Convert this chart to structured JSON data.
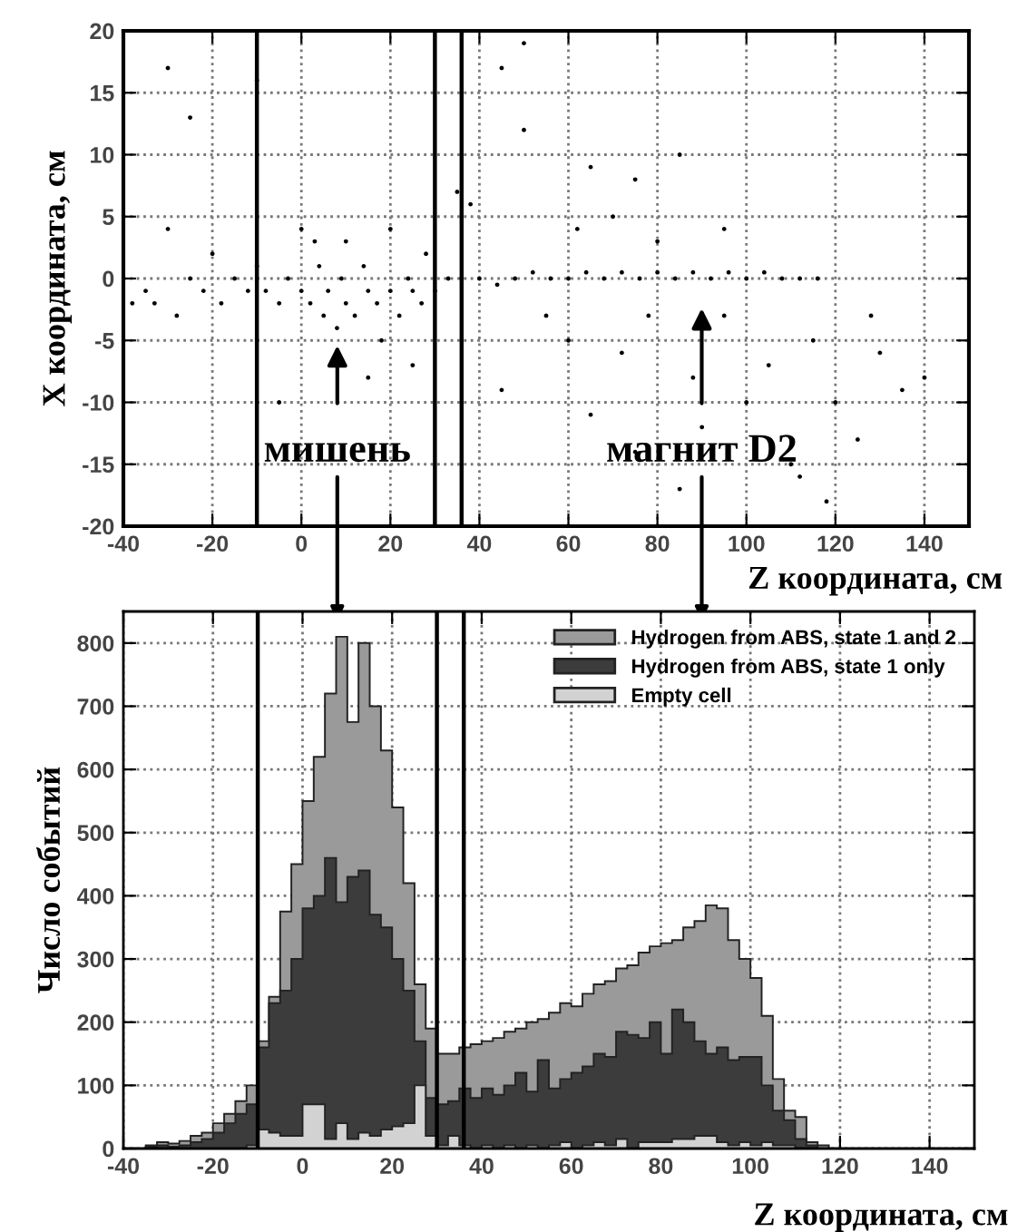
{
  "chart_data": [
    {
      "type": "scatter",
      "ylabel": "X координата, см",
      "xlabel": "Z координата, см",
      "color": "#000000",
      "marker": "circle",
      "grid": true,
      "xlim": [
        -40,
        150
      ],
      "ylim": [
        -20,
        20
      ],
      "xticks": [
        -40,
        -20,
        0,
        20,
        40,
        60,
        80,
        100,
        120,
        140
      ],
      "yticks": [
        -20,
        -15,
        -10,
        -5,
        0,
        5,
        10,
        15,
        20
      ],
      "x": [
        -15,
        -12,
        -10,
        -8,
        -5,
        -3,
        0,
        2,
        4,
        5,
        6,
        8,
        9,
        10,
        12,
        14,
        15,
        17,
        18,
        20,
        22,
        24,
        25,
        27,
        28,
        30,
        33,
        36,
        40,
        44,
        48,
        52,
        56,
        60,
        64,
        68,
        72,
        76,
        80,
        84,
        88,
        92,
        96,
        100,
        104,
        108,
        112,
        116,
        -20,
        -22,
        -18,
        -25,
        -30,
        -28,
        -35,
        -30,
        -25,
        -10,
        -5,
        0,
        3,
        10,
        20,
        25,
        15,
        35,
        45,
        50,
        50,
        55,
        60,
        62,
        65,
        70,
        72,
        75,
        78,
        80,
        85,
        88,
        90,
        95,
        95,
        100,
        105,
        110,
        112,
        115,
        118,
        120,
        125,
        128,
        130,
        135,
        140,
        85,
        75,
        65,
        45,
        38,
        -33,
        -38
      ],
      "values": [
        0,
        -1,
        1,
        -1,
        -2,
        0,
        -1,
        -2,
        1,
        -3,
        -1,
        -4,
        0,
        -2,
        -3,
        1,
        -1,
        -2,
        -5,
        -1,
        -3,
        0,
        -1,
        -2,
        2,
        -1,
        0,
        0,
        0,
        -0.5,
        0,
        0.5,
        0,
        0,
        0.5,
        0,
        0.5,
        0,
        0.5,
        0,
        0.5,
        0,
        0.5,
        0,
        0.5,
        0,
        0,
        0,
        2,
        -1,
        -2,
        0,
        4,
        -3,
        -1,
        17,
        13,
        16,
        -10,
        4,
        3,
        3,
        4,
        -7,
        -8,
        7,
        17,
        19,
        12,
        -3,
        -5,
        4,
        9,
        5,
        -6,
        8,
        -3,
        3,
        10,
        -8,
        -12,
        -3,
        4,
        -10,
        -7,
        -15,
        -16,
        -5,
        -18,
        -10,
        -13,
        -3,
        -6,
        -9,
        -8,
        -17,
        -14,
        -11,
        -9,
        6,
        -2,
        -2
      ],
      "ref_lines": [
        {
          "axis": "x",
          "value": -10,
          "color": "#000000"
        },
        {
          "axis": "x",
          "value": 30,
          "color": "#000000"
        },
        {
          "axis": "x",
          "value": 36,
          "color": "#000000"
        }
      ],
      "annotations": [
        "мишень",
        "магнит D2"
      ]
    },
    {
      "type": "histogram",
      "ylabel": "Число событий",
      "xlabel": "Z координата, см",
      "grid": true,
      "legend": "top right",
      "xlim": [
        -40,
        150
      ],
      "ylim": [
        0,
        850
      ],
      "xticks": [
        -40,
        -20,
        0,
        20,
        40,
        60,
        80,
        100,
        120,
        140
      ],
      "yticks": [
        0,
        100,
        200,
        300,
        400,
        500,
        600,
        700,
        800
      ],
      "bins": [
        -40,
        -37.5,
        -35,
        -32.5,
        -30,
        -27.5,
        -25,
        -22.5,
        -20,
        -17.5,
        -15,
        -12.5,
        -10,
        -7.5,
        -5,
        -2.5,
        0,
        2.5,
        5,
        7.5,
        10,
        12.5,
        15,
        17.5,
        20,
        22.5,
        25,
        27.5,
        30,
        32.5,
        35,
        37.5,
        40,
        42.5,
        45,
        47.5,
        50,
        52.5,
        55,
        57.5,
        60,
        62.5,
        65,
        67.5,
        70,
        72.5,
        75,
        77.5,
        80,
        82.5,
        85,
        87.5,
        90,
        92.5,
        95,
        97.5,
        100,
        102.5,
        105,
        107.5,
        110,
        112.5,
        115,
        117.5,
        120
      ],
      "series": [
        {
          "name": "Hydrogen from ABS, state 1 and 2",
          "color": "#9a9a9a",
          "values": [
            0,
            0,
            5,
            10,
            8,
            12,
            20,
            25,
            40,
            55,
            75,
            100,
            170,
            240,
            375,
            450,
            550,
            620,
            720,
            810,
            675,
            800,
            700,
            630,
            540,
            420,
            260,
            190,
            150,
            150,
            160,
            165,
            170,
            175,
            185,
            190,
            200,
            205,
            215,
            230,
            225,
            245,
            260,
            265,
            285,
            290,
            310,
            320,
            325,
            330,
            350,
            360,
            385,
            380,
            330,
            300,
            270,
            210,
            110,
            60,
            50,
            10,
            5,
            0
          ]
        },
        {
          "name": "Hydrogen from ABS, state 1 only",
          "color": "#3c3c3c",
          "values": [
            0,
            0,
            3,
            5,
            3,
            5,
            10,
            15,
            25,
            40,
            55,
            70,
            160,
            230,
            250,
            300,
            380,
            400,
            460,
            390,
            430,
            440,
            370,
            350,
            300,
            250,
            170,
            80,
            70,
            75,
            95,
            80,
            95,
            85,
            100,
            120,
            90,
            140,
            95,
            110,
            120,
            130,
            150,
            145,
            185,
            180,
            175,
            200,
            150,
            220,
            200,
            170,
            150,
            160,
            140,
            145,
            145,
            100,
            60,
            45,
            15,
            5,
            0,
            0
          ]
        },
        {
          "name": "Empty cell",
          "color": "#d2d2d2",
          "values": [
            0,
            0,
            0,
            0,
            0,
            0,
            0,
            0,
            0,
            0,
            0,
            5,
            30,
            25,
            20,
            20,
            70,
            70,
            15,
            40,
            15,
            25,
            20,
            30,
            35,
            40,
            100,
            20,
            5,
            20,
            5,
            0,
            5,
            0,
            5,
            0,
            5,
            0,
            5,
            10,
            0,
            5,
            10,
            5,
            15,
            0,
            10,
            10,
            10,
            15,
            15,
            20,
            20,
            10,
            5,
            10,
            5,
            10,
            5,
            5,
            0,
            0,
            0,
            0
          ]
        }
      ],
      "ref_lines": [
        {
          "axis": "x",
          "value": -10,
          "color": "#000000"
        },
        {
          "axis": "x",
          "value": 30,
          "color": "#000000"
        },
        {
          "axis": "x",
          "value": 36,
          "color": "#000000"
        }
      ]
    }
  ]
}
